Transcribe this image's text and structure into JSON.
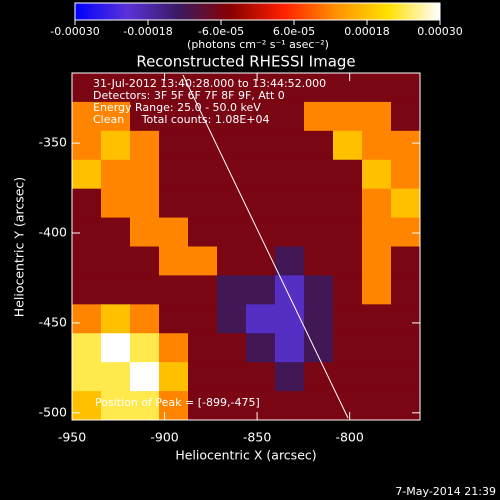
{
  "chart_data": {
    "type": "heatmap",
    "title": "Reconstructed RHESSI Image",
    "x_label": "Heliocentric X (arcsec)",
    "y_label": "Heliocentric Y (arcsec)",
    "annotations": [
      "31-Jul-2012 13:40:28.000 to 13:44:52.000",
      "Detectors: 3F 5F 6F 7F 8F 9F, Att 0",
      "Energy Range: 25.0 - 50.0 keV",
      "Clean     Total counts: 1.08E+04"
    ],
    "peak_label": "Position of Peak = [-899,-475]",
    "footer": "7-May-2014 21:39",
    "colorbar_label": "(photons cm⁻² s⁻¹ asec⁻²)",
    "clim": [
      -0.0003,
      0.0003
    ],
    "cticks": [
      {
        "value": -0.0003,
        "label": "-0.00030"
      },
      {
        "value": -0.00018,
        "label": "-0.00018"
      },
      {
        "value": -6e-05,
        "label": "-6.0e-05"
      },
      {
        "value": 6e-05,
        "label": "6.0e-05"
      },
      {
        "value": 0.00018,
        "label": "0.00018"
      },
      {
        "value": 0.0003,
        "label": "0.00030"
      }
    ],
    "colors": [
      "#0000ff",
      "#5a32d8",
      "#3a1a60",
      "#8a0000",
      "#ff2000",
      "#ff9000",
      "#ffe000",
      "#ffffff"
    ],
    "xlim": [
      -950,
      -762
    ],
    "ylim": [
      -504,
      -311
    ],
    "xticks": [
      -950,
      -900,
      -850,
      -800
    ],
    "yticks": [
      -350,
      -400,
      -450,
      -500
    ],
    "z": [
      [
        -6e-05,
        -6e-05,
        -6e-05,
        -6e-05,
        -6e-05,
        -6e-05,
        -6e-05,
        -6e-05,
        -6e-05,
        -6e-05,
        -6e-05,
        -6e-05
      ],
      [
        0.00012,
        0.00012,
        -6e-05,
        -6e-05,
        -6e-05,
        -6e-05,
        -6e-05,
        -6e-05,
        0.00012,
        0.00012,
        0.00012,
        -6e-05
      ],
      [
        0.00012,
        0.00018,
        0.00012,
        -6e-05,
        -6e-05,
        -6e-05,
        -6e-05,
        -6e-05,
        -6e-05,
        0.00018,
        0.00012,
        0.00012
      ],
      [
        0.00018,
        0.00012,
        0.00012,
        -6e-05,
        -6e-05,
        -6e-05,
        -6e-05,
        -6e-05,
        -6e-05,
        -6e-05,
        0.00018,
        0.00012
      ],
      [
        -6e-05,
        0.00012,
        0.00012,
        -6e-05,
        -6e-05,
        -6e-05,
        -6e-05,
        -6e-05,
        -6e-05,
        -6e-05,
        0.00012,
        0.00018
      ],
      [
        -6e-05,
        -6e-05,
        0.00012,
        0.00012,
        -6e-05,
        -6e-05,
        -6e-05,
        -6e-05,
        -6e-05,
        -6e-05,
        0.00012,
        0.00012
      ],
      [
        -6e-05,
        -6e-05,
        -6e-05,
        0.00012,
        0.00012,
        -6e-05,
        -6e-05,
        -0.00012,
        -6e-05,
        -6e-05,
        0.00012,
        -6e-05
      ],
      [
        -6e-05,
        -6e-05,
        -6e-05,
        -6e-05,
        -6e-05,
        -0.00012,
        -0.00012,
        -0.0002,
        -0.00012,
        -6e-05,
        0.00012,
        -6e-05
      ],
      [
        0.00012,
        0.00018,
        0.00012,
        -6e-05,
        -6e-05,
        -0.00012,
        -0.0002,
        -0.0002,
        -0.00012,
        -6e-05,
        -6e-05,
        -6e-05
      ],
      [
        0.00024,
        0.0003,
        0.00024,
        0.00012,
        -6e-05,
        -6e-05,
        -0.00012,
        -0.0002,
        -0.00012,
        -6e-05,
        -6e-05,
        -6e-05
      ],
      [
        0.00024,
        0.00024,
        0.0003,
        0.00018,
        -6e-05,
        -6e-05,
        -6e-05,
        -0.00012,
        -6e-05,
        -6e-05,
        -6e-05,
        -6e-05
      ],
      [
        0.00018,
        0.00024,
        0.00024,
        0.00012,
        -6e-05,
        -6e-05,
        -6e-05,
        -6e-05,
        -6e-05,
        -6e-05,
        -6e-05,
        -6e-05
      ]
    ]
  }
}
